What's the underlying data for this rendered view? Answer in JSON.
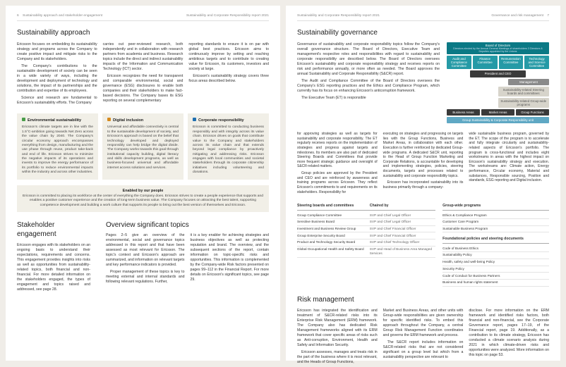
{
  "left": {
    "header": {
      "pgnum": "6",
      "crumb": "Sustainability approach and stakeholder engagement",
      "report": "Sustainability and Corporate Responsibility report 2021"
    },
    "approach": {
      "title": "Sustainability approach",
      "c1a": "Ericsson focuses on embedding its sustainability strategy and programs across the Company to create positive impact and mitigate risks to the Company and its stakeholders.",
      "c1b": "The Company's contributions to the sustainable development of society can be seen in a wide variety of ways, including the development and deployment of technology and solutions, the impact of its partnerships and the contribution and expertise of its employees.",
      "c1c": "Science and research are fundamental to Ericsson's sustainability efforts. The Company",
      "c2a": "carries out peer-reviewed research, both independently and in collaboration with research partners from academia and business. Research topics include the direct and indirect sustainability impacts of the Information and Communication Technology (ICT) sector.",
      "c2b": "Ericsson recognizes the need for transparent and comparable environmental, social and governance (ESG) disclosures to enable both companies and their stakeholders to make fact-based decisions. The Company bases its ESG reporting on several complementary",
      "c3a": "reporting standards to ensure it is on par with global best practices. Ericsson aims to continuously improve by setting and reaching ambitious targets and to contribute to creating value for Ericsson, its customers, investors and society at large.",
      "c3b": "Ericsson's sustainability strategy covers three focus areas described below."
    },
    "boxes": [
      {
        "color": "g",
        "title": "Environmental sustainability",
        "body": "Ericsson's climate targets are in line with the 1.5°C-ambition going towards Net Zero across the value chain by 2040. The Company's circular economy approach encompasses everything from design, manufacturing and the use phase through reuse, product take-back and end of life. Ericsson strives to minimize the negative impacts of its operations and invests to improve the energy performance of its portfolio to reduce environmental impacts within the industry and across other industries."
      },
      {
        "color": "o",
        "title": "Digital inclusion",
        "body": "Universal and affordable connectivity is central to the sustainable development of society, and Ericsson's approach is based on the belief that technology developed and deployed responsibly can help bridge the digital divide. The Company works towards this goal through institutional capacity building, digital literacy and skills development programs, as well as business-focused universal and affordable internet access solutions and services."
      },
      {
        "color": "b",
        "title": "Corporate responsibility",
        "body": "Ericsson is committed to conducting business responsibly and with integrity across its value chain. Ericsson drives on goals that contribute value to the Company and stakeholders across its value chain and that extends beyond legal compliance by proactively mitigating and addressing risks. Ericsson engages with local communities and societal stakeholders through its corporate citizenship initiatives including volunteering and donations."
      }
    ],
    "banner": {
      "title": "Enabled by our people",
      "body": "Ericsson is committed to placing its workforce at the center of everything the Company does. Ericsson strives to create a people experience that supports and enables a positive customer experience and the creation of long-term business value. The Company focuses on attracting the best talent, supporting competence development and building a work culture that supports its people to bring out the best version of themselves and Ericsson."
    },
    "stake": {
      "title": "Stakeholder engagement",
      "c1": "Ericsson engages with its stakeholders on an ongoing basis to understand their expectations, requirements and concerns. This engagement provides insights into risks as well as opportunities from sustainability-related topics, both financial and non-financial. For more detailed information on the stakeholders engaged, the types of engagement and topics raised and addressed, see page 28."
    },
    "overview": {
      "title": "Overview significant topics",
      "c1": "Pages 2–5 give an overview of the environmental, social and governance topics addressed in this report and that have been assessed as most relevant for Ericsson. The topic's context and Ericsson's approach are summarized, and information on relevant targets and key performance indicators is provided.",
      "c1b": "Proper management of these topics is key to meeting external and internal standards and following relevant regulations. Further,",
      "c2": "it is a key enabler for achieving strategies and business objectives as well as protecting reputation and brand. The overview, and the subsequent sections of the report, contain information on topic-specific risks and opportunities. This information is complemented by the Company-wide Risk factors presented on pages 99–112 in the Financial Report. For more details on Ericsson's significant topics, see page 29."
    }
  },
  "right": {
    "header": {
      "report": "Sustainability and Corporate Responsibility report 2021",
      "crumb": "Governance and risk management",
      "pgnum": "7"
    },
    "gov": {
      "title": "Sustainability governance",
      "p1": "Governance of sustainability and corporate responsibility topics follow the Company's overall governance structure. The Board of Directors, Executive Team and management's respective roles and responsibilities with regard to sustainability and corporate responsibility are described below. The Board of Directors oversees Ericsson's sustainability and corporate responsibility strategy and receives reports on risk and performance annually, or more often as needed. The Board approves the annual Sustainability and Corporate Responsibility (S&CR) report.",
      "p2": "The Audit and Compliance Committee of the Board of Directors oversees the Company's ESG reporting practices and the Ethics and Compliance Program, which currently has its focus on enhancing Ericsson's anticorruption framework.",
      "p3": "The Executive Team (ET) is responsible",
      "p3b": "for approving strategies as well as targets for sustainability and corporate responsibility. The ET regularly receives reports on the implementation of strategies and progress against targets and milestones. Its members are also part of dedicated Steering Boards and Committees that provide more frequent strategic guidance and oversight of S&CR-related matters.",
      "p4": "Group policies are approved by the President and CEO and are reinforced by awareness and training programs across Ericsson. They reflect Ericsson's commitments to and requirements on its stakeholders. Responsibility for"
    },
    "mid": {
      "c1": "executing on strategies and progressing on targets lies with the Group Functions, Business and Market Areas, in collaboration with each other. Execution is further reinforced by dedicated Group-wide programs. A dedicated S&CR unit, reporting to the Head of Group Function Marketing and Corporate Relations, is accountable for developing and implementing strategies, policies, steering documents, targets and processes related to sustainability and corporate responsibility topics.",
      "c1b": "Ericsson has incorporated sustainability into its business primarily through a company-",
      "c2": "wide sustainable business program, governed by the ET. The scope of the program is to accelerate and fully integrate circularity and sustainability-related aspects of Ericsson's portfolio. The program is cross-functional and includes eight workstreams in areas with the highest impact on Ericsson's sustainability strategy and execution. The workstreams are: Climate action, Energy performance, Circular economy, Material and substances, Responsible sourcing, Position and standards, ESG reporting and Digital inclusion."
    },
    "org": {
      "bod": "Board of Directors",
      "bod_sub": "Directors elected by the Annual General Meetings of shareholders   3 Directors & Deputies appointed by the Unions",
      "comms": [
        "Audit and Compliance Committee",
        "Finance Committee",
        "Remuneration Committee",
        "Technology and Science Committee"
      ],
      "ceo": "President and CEO",
      "mgmt": "Management",
      "srsb": "Sustainability-related Steering boards and committees",
      "sugp": "Sustainability-related Group-wide programs",
      "areas": [
        "Business Areas",
        "Market Areas",
        "Group Functions"
      ],
      "unit": "Group Sustainability & Corporate Responsibility unit"
    },
    "table": {
      "h1": "Steering boards and committees",
      "h2": "Chaired by",
      "rows": [
        [
          "Group Compliance Committee",
          "SVP and Chief Legal Officer"
        ],
        [
          "Sensitive Business Board",
          "SVP and Chief Legal Officer"
        ],
        [
          "Investment and Business Review Group",
          "SVP and Chief Financial Officer"
        ],
        [
          "Group Enterprise Security Board",
          "SVP and Chief Financial Officer"
        ],
        [
          "Product and Technology Security Board",
          "SVP and Chief Technology Officer"
        ],
        [
          "Global Occupational Health and Safety Board",
          "SVP and Head of Business Area Managed Services"
        ]
      ],
      "h3": "Group-wide programs",
      "gp": [
        "Ethics & Compliance Program",
        "Customer Care Program",
        "Sustainable Business Program"
      ],
      "h4": "Foundational policies and steering documents",
      "fp": [
        "Code of Business Ethics",
        "Sustainability Policy",
        "Health, safety and well-being Policy",
        "Security Policy",
        "Code of Conduct for Business Partners",
        "Business and human rights statement"
      ]
    },
    "risk": {
      "title": "Risk management",
      "c1": "Ericsson has integrated the identification and treatment of S&CR-related risks into its Enterprise Risk Management (ERM) framework. The Company also has dedicated Risk Management frameworks aligned with its ERM framework that cover specific areas of risks such as Anti-corruption, Environment, Health and Safety and Information Security.",
      "c1b": "Ericsson assesses, manages and treats risk in the part of the business where it is most relevant, and the Heads of Group Functions,",
      "c2": "Market and Business Areas, and other units with Group-wide responsibilities are given ownership for specific identified risks. To embed this approach throughout the Company, a central Group Risk Management Function coordinates and governs the ERM framework and process.",
      "c2b": "The S&CR report includes information on S&CR-related risks that are not considered significant on a group level but which from a sustainability perspective are relevant to",
      "c3": "disclose. For more information on the ERM framework and identified risks factors, both financial and non-financial, see the Corporate Governance report, pages 17–19, of the Financial report, page 19. Additionally, as a contribution to its climate strategy, Ericsson has conducted a climate scenario analysis during 2021 in which climate-driven risks and opportunities were analyzed. More information on this topic on page 53."
    }
  }
}
